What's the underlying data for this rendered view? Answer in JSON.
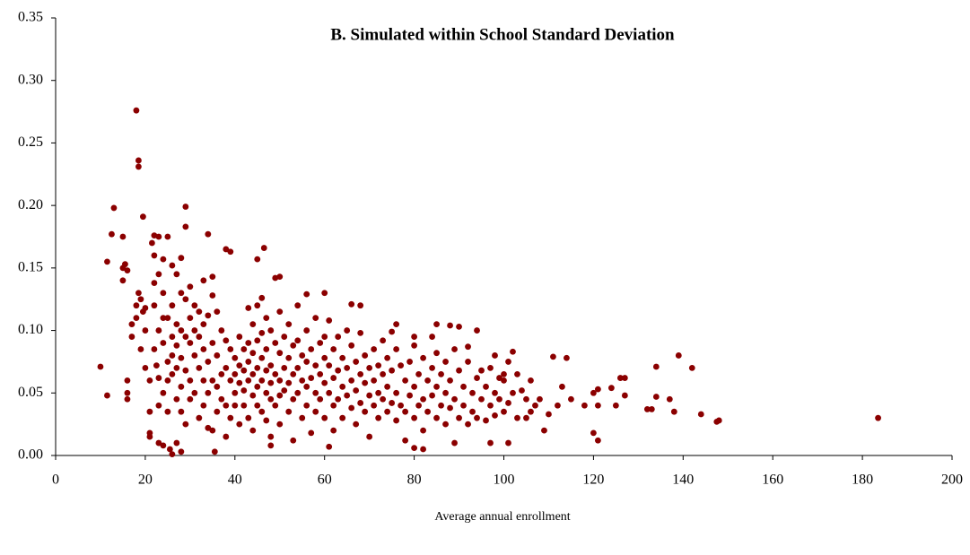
{
  "chart_data": {
    "type": "scatter",
    "title": "B. Simulated within School Standard Deviation",
    "x_label": "Average annual enrollment",
    "color": "#8B0000",
    "xlim": [
      0,
      200
    ],
    "xticks": [
      0,
      20,
      40,
      60,
      80,
      100,
      120,
      140,
      160,
      180,
      200
    ],
    "ylim": [
      0,
      0.35
    ],
    "yticks": [
      {
        "value": 0,
        "label": "0.00"
      },
      {
        "value": 0.05,
        "label": "0.05"
      },
      {
        "value": 0.1,
        "label": "0.10"
      },
      {
        "value": 0.15,
        "label": "0.15"
      },
      {
        "value": 0.2,
        "label": "0.20"
      },
      {
        "value": 0.25,
        "label": "0.25"
      },
      {
        "value": 0.3,
        "label": "0.30"
      },
      {
        "value": 0.35,
        "label": "0.35"
      }
    ],
    "x": [
      18,
      18.5,
      18.5,
      29,
      13,
      12.5,
      11.5,
      15,
      19.5,
      22,
      23,
      25,
      29,
      34,
      38,
      39,
      46.5,
      45,
      10,
      11.5,
      183.5,
      148,
      147.5,
      144,
      142,
      139,
      137,
      138,
      134,
      134,
      133,
      132,
      127,
      126,
      127,
      125,
      124,
      121,
      120,
      121,
      120,
      121,
      118,
      114,
      111,
      113,
      115,
      112,
      110,
      108,
      109,
      105,
      107,
      104,
      102,
      101,
      100,
      99,
      98,
      95,
      94,
      92,
      90,
      88,
      85,
      80,
      76,
      75,
      68,
      66,
      60,
      56,
      50,
      49,
      26,
      28,
      35.5,
      23,
      21,
      24,
      27,
      82,
      80,
      61,
      48,
      89,
      97,
      101,
      15,
      15,
      15.5,
      16,
      17,
      17,
      16,
      16,
      16,
      18,
      18,
      18.5,
      19,
      19,
      19.5,
      20,
      20,
      20,
      21,
      21,
      21,
      21.5,
      22,
      22,
      22,
      22,
      22.5,
      23,
      23,
      23,
      23,
      24,
      24,
      24,
      24,
      24,
      25,
      25,
      25,
      25,
      25.5,
      26,
      26,
      26,
      26,
      26,
      27,
      27,
      27,
      27,
      27,
      28,
      28,
      28,
      28,
      28,
      28,
      29,
      29,
      29,
      29,
      30,
      30,
      30,
      30,
      30,
      31,
      31,
      31,
      31,
      32,
      32,
      32,
      32,
      33,
      33,
      33,
      33,
      33,
      34,
      34,
      34,
      34,
      35,
      35,
      35,
      35,
      35,
      36,
      36,
      36,
      36,
      37,
      37,
      37,
      38,
      38,
      38,
      38,
      39,
      39,
      39,
      40,
      40,
      40,
      40,
      41,
      41,
      41,
      41,
      42,
      42,
      42,
      42,
      43,
      43,
      43,
      43,
      43,
      44,
      44,
      44,
      44,
      44,
      45,
      45,
      45,
      45,
      45,
      46,
      46,
      46,
      46,
      46,
      47,
      47,
      47,
      47,
      47,
      48,
      48,
      48,
      48,
      48,
      49,
      49,
      49,
      50,
      50,
      50,
      50,
      50,
      51,
      51,
      51,
      52,
      52,
      52,
      52,
      53,
      53,
      53,
      53,
      54,
      54,
      54,
      54,
      55,
      55,
      55,
      56,
      56,
      56,
      56,
      57,
      57,
      57,
      58,
      58,
      58,
      58,
      59,
      59,
      59,
      60,
      60,
      60,
      60,
      61,
      61,
      61,
      62,
      62,
      62,
      62,
      63,
      63,
      63,
      64,
      64,
      64,
      65,
      65,
      65,
      66,
      66,
      66,
      67,
      67,
      67,
      68,
      68,
      68,
      69,
      69,
      69,
      70,
      70,
      70,
      71,
      71,
      71,
      72,
      72,
      72,
      73,
      73,
      73,
      74,
      74,
      74,
      75,
      75,
      76,
      76,
      76,
      77,
      77,
      78,
      78,
      78,
      79,
      79,
      80,
      80,
      80,
      81,
      81,
      82,
      82,
      82,
      83,
      83,
      84,
      84,
      84,
      85,
      85,
      85,
      86,
      86,
      87,
      87,
      87,
      88,
      88,
      89,
      89,
      90,
      90,
      91,
      91,
      92,
      92,
      93,
      93,
      94,
      94,
      95,
      96,
      96,
      97,
      97,
      98,
      98,
      99,
      100,
      100,
      101,
      102,
      103,
      103,
      105,
      106,
      106
    ],
    "y": [
      0.276,
      0.236,
      0.231,
      0.199,
      0.198,
      0.177,
      0.155,
      0.175,
      0.191,
      0.176,
      0.175,
      0.175,
      0.183,
      0.177,
      0.165,
      0.163,
      0.166,
      0.157,
      0.071,
      0.048,
      0.03,
      0.028,
      0.027,
      0.033,
      0.07,
      0.08,
      0.045,
      0.035,
      0.047,
      0.071,
      0.037,
      0.037,
      0.062,
      0.062,
      0.048,
      0.04,
      0.054,
      0.04,
      0.05,
      0.053,
      0.018,
      0.012,
      0.04,
      0.078,
      0.079,
      0.055,
      0.045,
      0.04,
      0.033,
      0.045,
      0.02,
      0.03,
      0.04,
      0.052,
      0.083,
      0.075,
      0.065,
      0.062,
      0.08,
      0.068,
      0.1,
      0.087,
      0.103,
      0.104,
      0.105,
      0.095,
      0.105,
      0.099,
      0.12,
      0.121,
      0.13,
      0.129,
      0.143,
      0.142,
      0.001,
      0.003,
      0.003,
      0.01,
      0.018,
      0.008,
      0.01,
      0.005,
      0.006,
      0.007,
      0.008,
      0.01,
      0.01,
      0.01,
      0.15,
      0.14,
      0.153,
      0.148,
      0.105,
      0.095,
      0.06,
      0.05,
      0.045,
      0.12,
      0.11,
      0.13,
      0.125,
      0.085,
      0.115,
      0.118,
      0.1,
      0.07,
      0.06,
      0.035,
      0.015,
      0.17,
      0.16,
      0.138,
      0.12,
      0.085,
      0.072,
      0.145,
      0.1,
      0.062,
      0.04,
      0.157,
      0.13,
      0.11,
      0.09,
      0.05,
      0.11,
      0.075,
      0.06,
      0.035,
      0.005,
      0.152,
      0.12,
      0.095,
      0.08,
      0.065,
      0.145,
      0.105,
      0.088,
      0.07,
      0.045,
      0.158,
      0.13,
      0.1,
      0.078,
      0.055,
      0.035,
      0.125,
      0.095,
      0.068,
      0.025,
      0.135,
      0.11,
      0.09,
      0.06,
      0.045,
      0.12,
      0.1,
      0.08,
      0.05,
      0.115,
      0.095,
      0.07,
      0.03,
      0.14,
      0.105,
      0.085,
      0.06,
      0.04,
      0.112,
      0.075,
      0.05,
      0.022,
      0.143,
      0.128,
      0.09,
      0.06,
      0.02,
      0.115,
      0.08,
      0.055,
      0.035,
      0.1,
      0.065,
      0.045,
      0.092,
      0.07,
      0.04,
      0.015,
      0.085,
      0.06,
      0.03,
      0.078,
      0.065,
      0.05,
      0.04,
      0.095,
      0.072,
      0.058,
      0.025,
      0.085,
      0.068,
      0.052,
      0.04,
      0.118,
      0.09,
      0.075,
      0.06,
      0.03,
      0.105,
      0.082,
      0.065,
      0.048,
      0.02,
      0.12,
      0.092,
      0.07,
      0.055,
      0.04,
      0.126,
      0.098,
      0.078,
      0.06,
      0.035,
      0.11,
      0.085,
      0.068,
      0.05,
      0.028,
      0.1,
      0.072,
      0.058,
      0.045,
      0.015,
      0.09,
      0.065,
      0.04,
      0.115,
      0.082,
      0.06,
      0.048,
      0.025,
      0.095,
      0.07,
      0.052,
      0.105,
      0.078,
      0.058,
      0.035,
      0.088,
      0.065,
      0.045,
      0.012,
      0.12,
      0.092,
      0.07,
      0.05,
      0.08,
      0.06,
      0.03,
      0.1,
      0.075,
      0.055,
      0.04,
      0.085,
      0.062,
      0.018,
      0.11,
      0.072,
      0.05,
      0.035,
      0.09,
      0.065,
      0.045,
      0.095,
      0.078,
      0.058,
      0.03,
      0.108,
      0.072,
      0.05,
      0.085,
      0.062,
      0.04,
      0.02,
      0.095,
      0.068,
      0.045,
      0.078,
      0.055,
      0.03,
      0.1,
      0.07,
      0.048,
      0.088,
      0.06,
      0.038,
      0.075,
      0.052,
      0.025,
      0.098,
      0.065,
      0.042,
      0.08,
      0.058,
      0.035,
      0.07,
      0.048,
      0.015,
      0.085,
      0.06,
      0.04,
      0.072,
      0.05,
      0.03,
      0.092,
      0.065,
      0.045,
      0.078,
      0.055,
      0.035,
      0.068,
      0.042,
      0.085,
      0.05,
      0.028,
      0.072,
      0.04,
      0.06,
      0.035,
      0.012,
      0.075,
      0.048,
      0.088,
      0.055,
      0.03,
      0.065,
      0.04,
      0.078,
      0.045,
      0.02,
      0.06,
      0.035,
      0.095,
      0.07,
      0.048,
      0.082,
      0.055,
      0.03,
      0.065,
      0.04,
      0.075,
      0.05,
      0.025,
      0.06,
      0.038,
      0.085,
      0.045,
      0.068,
      0.03,
      0.055,
      0.04,
      0.075,
      0.025,
      0.05,
      0.035,
      0.062,
      0.03,
      0.045,
      0.055,
      0.028,
      0.07,
      0.04,
      0.05,
      0.032,
      0.045,
      0.06,
      0.035,
      0.042,
      0.05,
      0.03,
      0.065,
      0.045,
      0.06,
      0.035
    ]
  }
}
